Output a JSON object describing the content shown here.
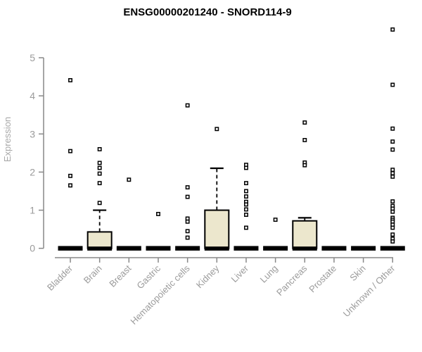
{
  "colors": {
    "box_fill": "#ece7cd",
    "box_stroke": "#000000",
    "axis_line": "#898989",
    "tick_label": "#9b9b9b",
    "axis_title": "#a8a8a8",
    "title": "#000000",
    "marker_fill": "#ffffff",
    "marker_stroke": "#000000"
  },
  "chart_data": {
    "type": "boxplot",
    "title": "ENSG00000201240 - SNORD114-9",
    "xlabel": "",
    "ylabel": "Expression",
    "ylim": [
      0,
      5.8
    ],
    "yticks": [
      0,
      1,
      2,
      3,
      4,
      5
    ],
    "grid": false,
    "legend": "none",
    "categories": [
      "Bladder",
      "Brain",
      "Breast",
      "Gastric",
      "Hematopoietic cells",
      "Kidney",
      "Liver",
      "Lung",
      "Pancreas",
      "Prostate",
      "Skin",
      "Unknown / Other"
    ],
    "series": [
      {
        "category": "Bladder",
        "q1": 0,
        "median": 0,
        "q3": 0,
        "whisker_low": 0,
        "whisker_high": 0,
        "outliers": [
          4.41,
          2.55,
          1.9,
          1.65
        ]
      },
      {
        "category": "Brain",
        "q1": 0,
        "median": 0,
        "q3": 0.43,
        "whisker_low": 0,
        "whisker_high": 1.0,
        "outliers": [
          2.6,
          2.24,
          2.11,
          1.96,
          1.71,
          1.19
        ]
      },
      {
        "category": "Breast",
        "q1": 0,
        "median": 0,
        "q3": 0,
        "whisker_low": 0,
        "whisker_high": 0,
        "outliers": [
          1.8
        ]
      },
      {
        "category": "Gastric",
        "q1": 0,
        "median": 0,
        "q3": 0,
        "whisker_low": 0,
        "whisker_high": 0,
        "outliers": [
          0.9
        ]
      },
      {
        "category": "Hematopoietic cells",
        "q1": 0,
        "median": 0,
        "q3": 0,
        "whisker_low": 0,
        "whisker_high": 0,
        "outliers": [
          3.75,
          1.6,
          1.35,
          0.78,
          0.7,
          0.45,
          0.28
        ]
      },
      {
        "category": "Kidney",
        "q1": 0,
        "median": 0,
        "q3": 1.0,
        "whisker_low": 0,
        "whisker_high": 2.1,
        "outliers": [
          3.13
        ]
      },
      {
        "category": "Liver",
        "q1": 0,
        "median": 0,
        "q3": 0,
        "whisker_low": 0,
        "whisker_high": 0,
        "outliers": [
          2.19,
          2.11,
          1.71,
          1.5,
          1.36,
          1.22,
          1.15,
          1.02,
          0.88,
          0.54
        ]
      },
      {
        "category": "Lung",
        "q1": 0,
        "median": 0,
        "q3": 0,
        "whisker_low": 0,
        "whisker_high": 0,
        "outliers": [
          0.75
        ]
      },
      {
        "category": "Pancreas",
        "q1": 0,
        "median": 0,
        "q3": 0.72,
        "whisker_low": 0,
        "whisker_high": 0.8,
        "outliers": [
          3.3,
          2.84,
          2.25,
          2.18
        ]
      },
      {
        "category": "Prostate",
        "q1": 0,
        "median": 0,
        "q3": 0,
        "whisker_low": 0,
        "whisker_high": 0,
        "outliers": []
      },
      {
        "category": "Skin",
        "q1": 0,
        "median": 0,
        "q3": 0,
        "whisker_low": 0,
        "whisker_high": 0,
        "outliers": []
      },
      {
        "category": "Unknown / Other",
        "q1": 0,
        "median": 0,
        "q3": 0,
        "whisker_low": 0,
        "whisker_high": 0,
        "outliers": [
          5.74,
          4.29,
          3.14,
          2.8,
          2.59,
          2.06,
          1.97,
          1.88,
          1.23,
          1.11,
          1.04,
          0.96,
          0.8,
          0.75,
          0.7,
          0.62,
          0.54,
          0.36,
          0.25,
          0.18
        ]
      }
    ]
  }
}
